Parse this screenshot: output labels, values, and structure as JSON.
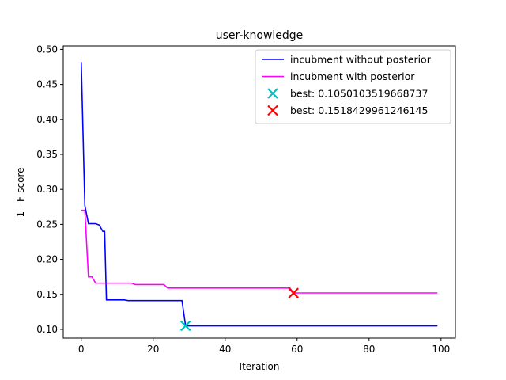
{
  "chart_data": {
    "type": "line",
    "title": "user-knowledge",
    "xlabel": "Iteration",
    "ylabel": "1 - F-score",
    "xlim": [
      -5,
      104
    ],
    "ylim": [
      0.0875,
      0.505
    ],
    "xticks": [
      0,
      20,
      40,
      60,
      80,
      100
    ],
    "yticks": [
      0.1,
      0.15,
      0.2,
      0.25,
      0.3,
      0.35,
      0.4,
      0.45,
      0.5
    ],
    "grid": false,
    "legend_position": "top-right",
    "series": [
      {
        "name": "incubment without posterior",
        "color": "#0000ff",
        "kind": "line",
        "points": [
          [
            0,
            0.482
          ],
          [
            1,
            0.277
          ],
          [
            2,
            0.251
          ],
          [
            3,
            0.251
          ],
          [
            4,
            0.251
          ],
          [
            5,
            0.249
          ],
          [
            6,
            0.24
          ],
          [
            6.5,
            0.24
          ],
          [
            7,
            0.142
          ],
          [
            8,
            0.142
          ],
          [
            12,
            0.142
          ],
          [
            13,
            0.141
          ],
          [
            28,
            0.141
          ],
          [
            29,
            0.105
          ],
          [
            99,
            0.105
          ]
        ]
      },
      {
        "name": "incubment with posterior",
        "color": "#ff00ff",
        "kind": "line",
        "points": [
          [
            0,
            0.27
          ],
          [
            1,
            0.27
          ],
          [
            2,
            0.175
          ],
          [
            3,
            0.175
          ],
          [
            4,
            0.166
          ],
          [
            14,
            0.166
          ],
          [
            15,
            0.164
          ],
          [
            23,
            0.164
          ],
          [
            24,
            0.159
          ],
          [
            58,
            0.159
          ],
          [
            59,
            0.152
          ],
          [
            99,
            0.152
          ]
        ]
      },
      {
        "name": "best: 0.1050103519668737",
        "color": "#00bfbf",
        "kind": "marker",
        "points": [
          [
            29,
            0.1050103519668737
          ]
        ]
      },
      {
        "name": "best: 0.1518429961246145",
        "color": "#ff0000",
        "kind": "marker",
        "points": [
          [
            59,
            0.1518429961246145
          ]
        ]
      }
    ]
  }
}
